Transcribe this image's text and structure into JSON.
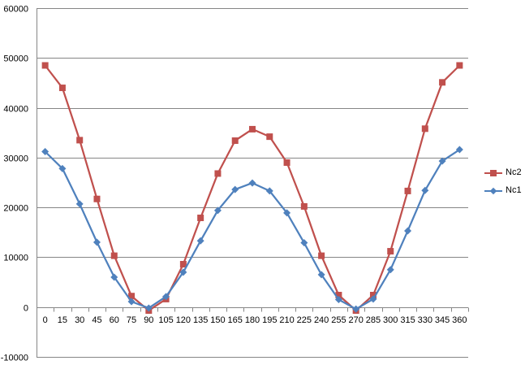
{
  "chart_data": {
    "type": "line",
    "title": "",
    "xlabel": "",
    "ylabel": "",
    "categories": [
      "0",
      "15",
      "30",
      "45",
      "60",
      "75",
      "90",
      "105",
      "120",
      "135",
      "150",
      "165",
      "180",
      "195",
      "210",
      "225",
      "240",
      "255",
      "270",
      "285",
      "300",
      "315",
      "330",
      "345",
      "360"
    ],
    "ylim": [
      -10000,
      60000
    ],
    "yticks": [
      "-10000",
      "0",
      "10000",
      "20000",
      "30000",
      "40000",
      "50000",
      "60000"
    ],
    "grid": true,
    "legend": "right",
    "series": [
      {
        "name": "Nc2",
        "color": "#c0504d",
        "marker": "square",
        "values": [
          48500,
          44000,
          33500,
          21700,
          10300,
          2200,
          -700,
          1600,
          8600,
          17900,
          26800,
          33400,
          35700,
          34200,
          29000,
          20200,
          10300,
          2400,
          -700,
          2400,
          11200,
          23300,
          35800,
          45100,
          48500
        ]
      },
      {
        "name": "Nc1",
        "color": "#4f81bd",
        "marker": "diamond",
        "values": [
          31200,
          27800,
          20700,
          13000,
          6000,
          1100,
          -200,
          2100,
          7000,
          13300,
          19400,
          23600,
          24900,
          23300,
          18900,
          12900,
          6500,
          1500,
          -400,
          1600,
          7500,
          15300,
          23400,
          29300,
          31600
        ]
      }
    ]
  }
}
